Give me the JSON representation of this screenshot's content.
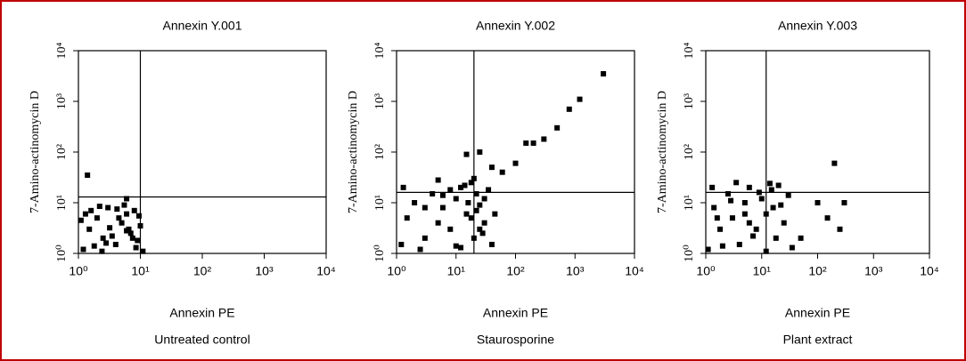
{
  "chart_data": [
    {
      "type": "scatter",
      "title": "Annexin Y.001",
      "xlabel": "Annexin PE",
      "ylabel": "7-Amino-actinomycin D",
      "caption": "Untreated control",
      "log_x": true,
      "log_y": true,
      "xlim": [
        1,
        10000
      ],
      "ylim": [
        1,
        10000
      ],
      "xticks": [
        {
          "value": 1,
          "label": "10⁰"
        },
        {
          "value": 10,
          "label": "10¹"
        },
        {
          "value": 100,
          "label": "10²"
        },
        {
          "value": 1000,
          "label": "10³"
        },
        {
          "value": 10000,
          "label": "10⁴"
        }
      ],
      "yticks": [
        {
          "value": 1,
          "label": "10⁰"
        },
        {
          "value": 10,
          "label": "10¹"
        },
        {
          "value": 100,
          "label": "10²"
        },
        {
          "value": 1000,
          "label": "10³"
        },
        {
          "value": 10000,
          "label": "10⁴"
        }
      ],
      "quadrant": {
        "x": 10,
        "y": 13
      },
      "series": [
        {
          "color": "#000000",
          "x": [
            1.2,
            1.5,
            2,
            2.5,
            3,
            4,
            5,
            6,
            7,
            8,
            9,
            10,
            11,
            1.3,
            1.8,
            2.2,
            3.5,
            4.5,
            6.5,
            8.5,
            1.1,
            1.6,
            2.8,
            3.2,
            5.5,
            7.5,
            9.5,
            2.4,
            4.2,
            6,
            1.4,
            6
          ],
          "values": [
            1.2,
            3,
            5,
            2,
            8,
            1.5,
            4,
            6,
            2.5,
            7,
            1.8,
            3.5,
            1.1,
            6,
            1.4,
            8.5,
            2.2,
            5,
            3,
            1.3,
            4.5,
            7,
            1.6,
            3.2,
            9,
            2,
            5.5,
            1.1,
            7.5,
            2.8,
            35,
            12
          ]
        }
      ]
    },
    {
      "type": "scatter",
      "title": "Annexin Y.002",
      "xlabel": "Annexin PE",
      "ylabel": "7-Amino-actinomycin D",
      "caption": "Staurosporine",
      "log_x": true,
      "log_y": true,
      "xlim": [
        1,
        10000
      ],
      "ylim": [
        1,
        10000
      ],
      "xticks": [
        {
          "value": 1,
          "label": "10⁰"
        },
        {
          "value": 10,
          "label": "10¹"
        },
        {
          "value": 100,
          "label": "10²"
        },
        {
          "value": 1000,
          "label": "10³"
        },
        {
          "value": 10000,
          "label": "10⁴"
        }
      ],
      "yticks": [
        {
          "value": 1,
          "label": "10⁰"
        },
        {
          "value": 10,
          "label": "10¹"
        },
        {
          "value": 100,
          "label": "10²"
        },
        {
          "value": 1000,
          "label": "10³"
        },
        {
          "value": 10000,
          "label": "10⁴"
        }
      ],
      "quadrant": {
        "x": 20,
        "y": 16
      },
      "series": [
        {
          "color": "#000000",
          "x": [
            1.2,
            1.5,
            2,
            3,
            4,
            5,
            6,
            8,
            10,
            12,
            15,
            18,
            20,
            22,
            25,
            30,
            35,
            40,
            45,
            1.3,
            2.5,
            5,
            8,
            12,
            16,
            20,
            25,
            30,
            14,
            18,
            10,
            22,
            6,
            28,
            3,
            40,
            60,
            100,
            150,
            200,
            300,
            500,
            800,
            1200,
            3000,
            25,
            15
          ],
          "values": [
            1.5,
            5,
            10,
            2,
            15,
            4,
            8,
            3,
            12,
            20,
            6,
            25,
            2,
            15,
            9,
            4,
            18,
            1.5,
            6,
            20,
            1.2,
            28,
            18,
            1.3,
            10,
            30,
            3,
            12,
            22,
            5,
            1.4,
            7,
            14,
            2.5,
            8,
            50,
            40,
            60,
            150,
            150,
            180,
            300,
            700,
            1100,
            3500,
            100,
            90
          ]
        }
      ]
    },
    {
      "type": "scatter",
      "title": "Annexin Y.003",
      "xlabel": "Annexin PE",
      "ylabel": "7-Amino-actinomycin D",
      "caption": "Plant extract",
      "log_x": true,
      "log_y": true,
      "xlim": [
        1,
        10000
      ],
      "ylim": [
        1,
        10000
      ],
      "xticks": [
        {
          "value": 1,
          "label": "10⁰"
        },
        {
          "value": 10,
          "label": "10¹"
        },
        {
          "value": 100,
          "label": "10²"
        },
        {
          "value": 1000,
          "label": "10³"
        },
        {
          "value": 10000,
          "label": "10⁴"
        }
      ],
      "yticks": [
        {
          "value": 1,
          "label": "10⁰"
        },
        {
          "value": 10,
          "label": "10¹"
        },
        {
          "value": 100,
          "label": "10²"
        },
        {
          "value": 1000,
          "label": "10³"
        },
        {
          "value": 10000,
          "label": "10⁴"
        }
      ],
      "quadrant": {
        "x": 12,
        "y": 16
      },
      "series": [
        {
          "color": "#000000",
          "x": [
            1.1,
            1.4,
            1.8,
            2.5,
            3,
            4,
            5,
            6,
            8,
            10,
            12,
            15,
            18,
            22,
            25,
            30,
            35,
            1.3,
            2,
            3.5,
            5,
            7,
            9,
            12,
            16,
            20,
            2.8,
            6,
            14,
            1.6,
            200,
            100,
            150,
            300,
            250,
            50
          ],
          "values": [
            1.2,
            8,
            3,
            15,
            5,
            1.5,
            10,
            20,
            3,
            12,
            6,
            18,
            2,
            9,
            4,
            14,
            1.3,
            20,
            1.4,
            25,
            6,
            2.2,
            16,
            1.1,
            8,
            22,
            11,
            4,
            24,
            5,
            60,
            10,
            5,
            10,
            3,
            2
          ]
        }
      ]
    }
  ]
}
